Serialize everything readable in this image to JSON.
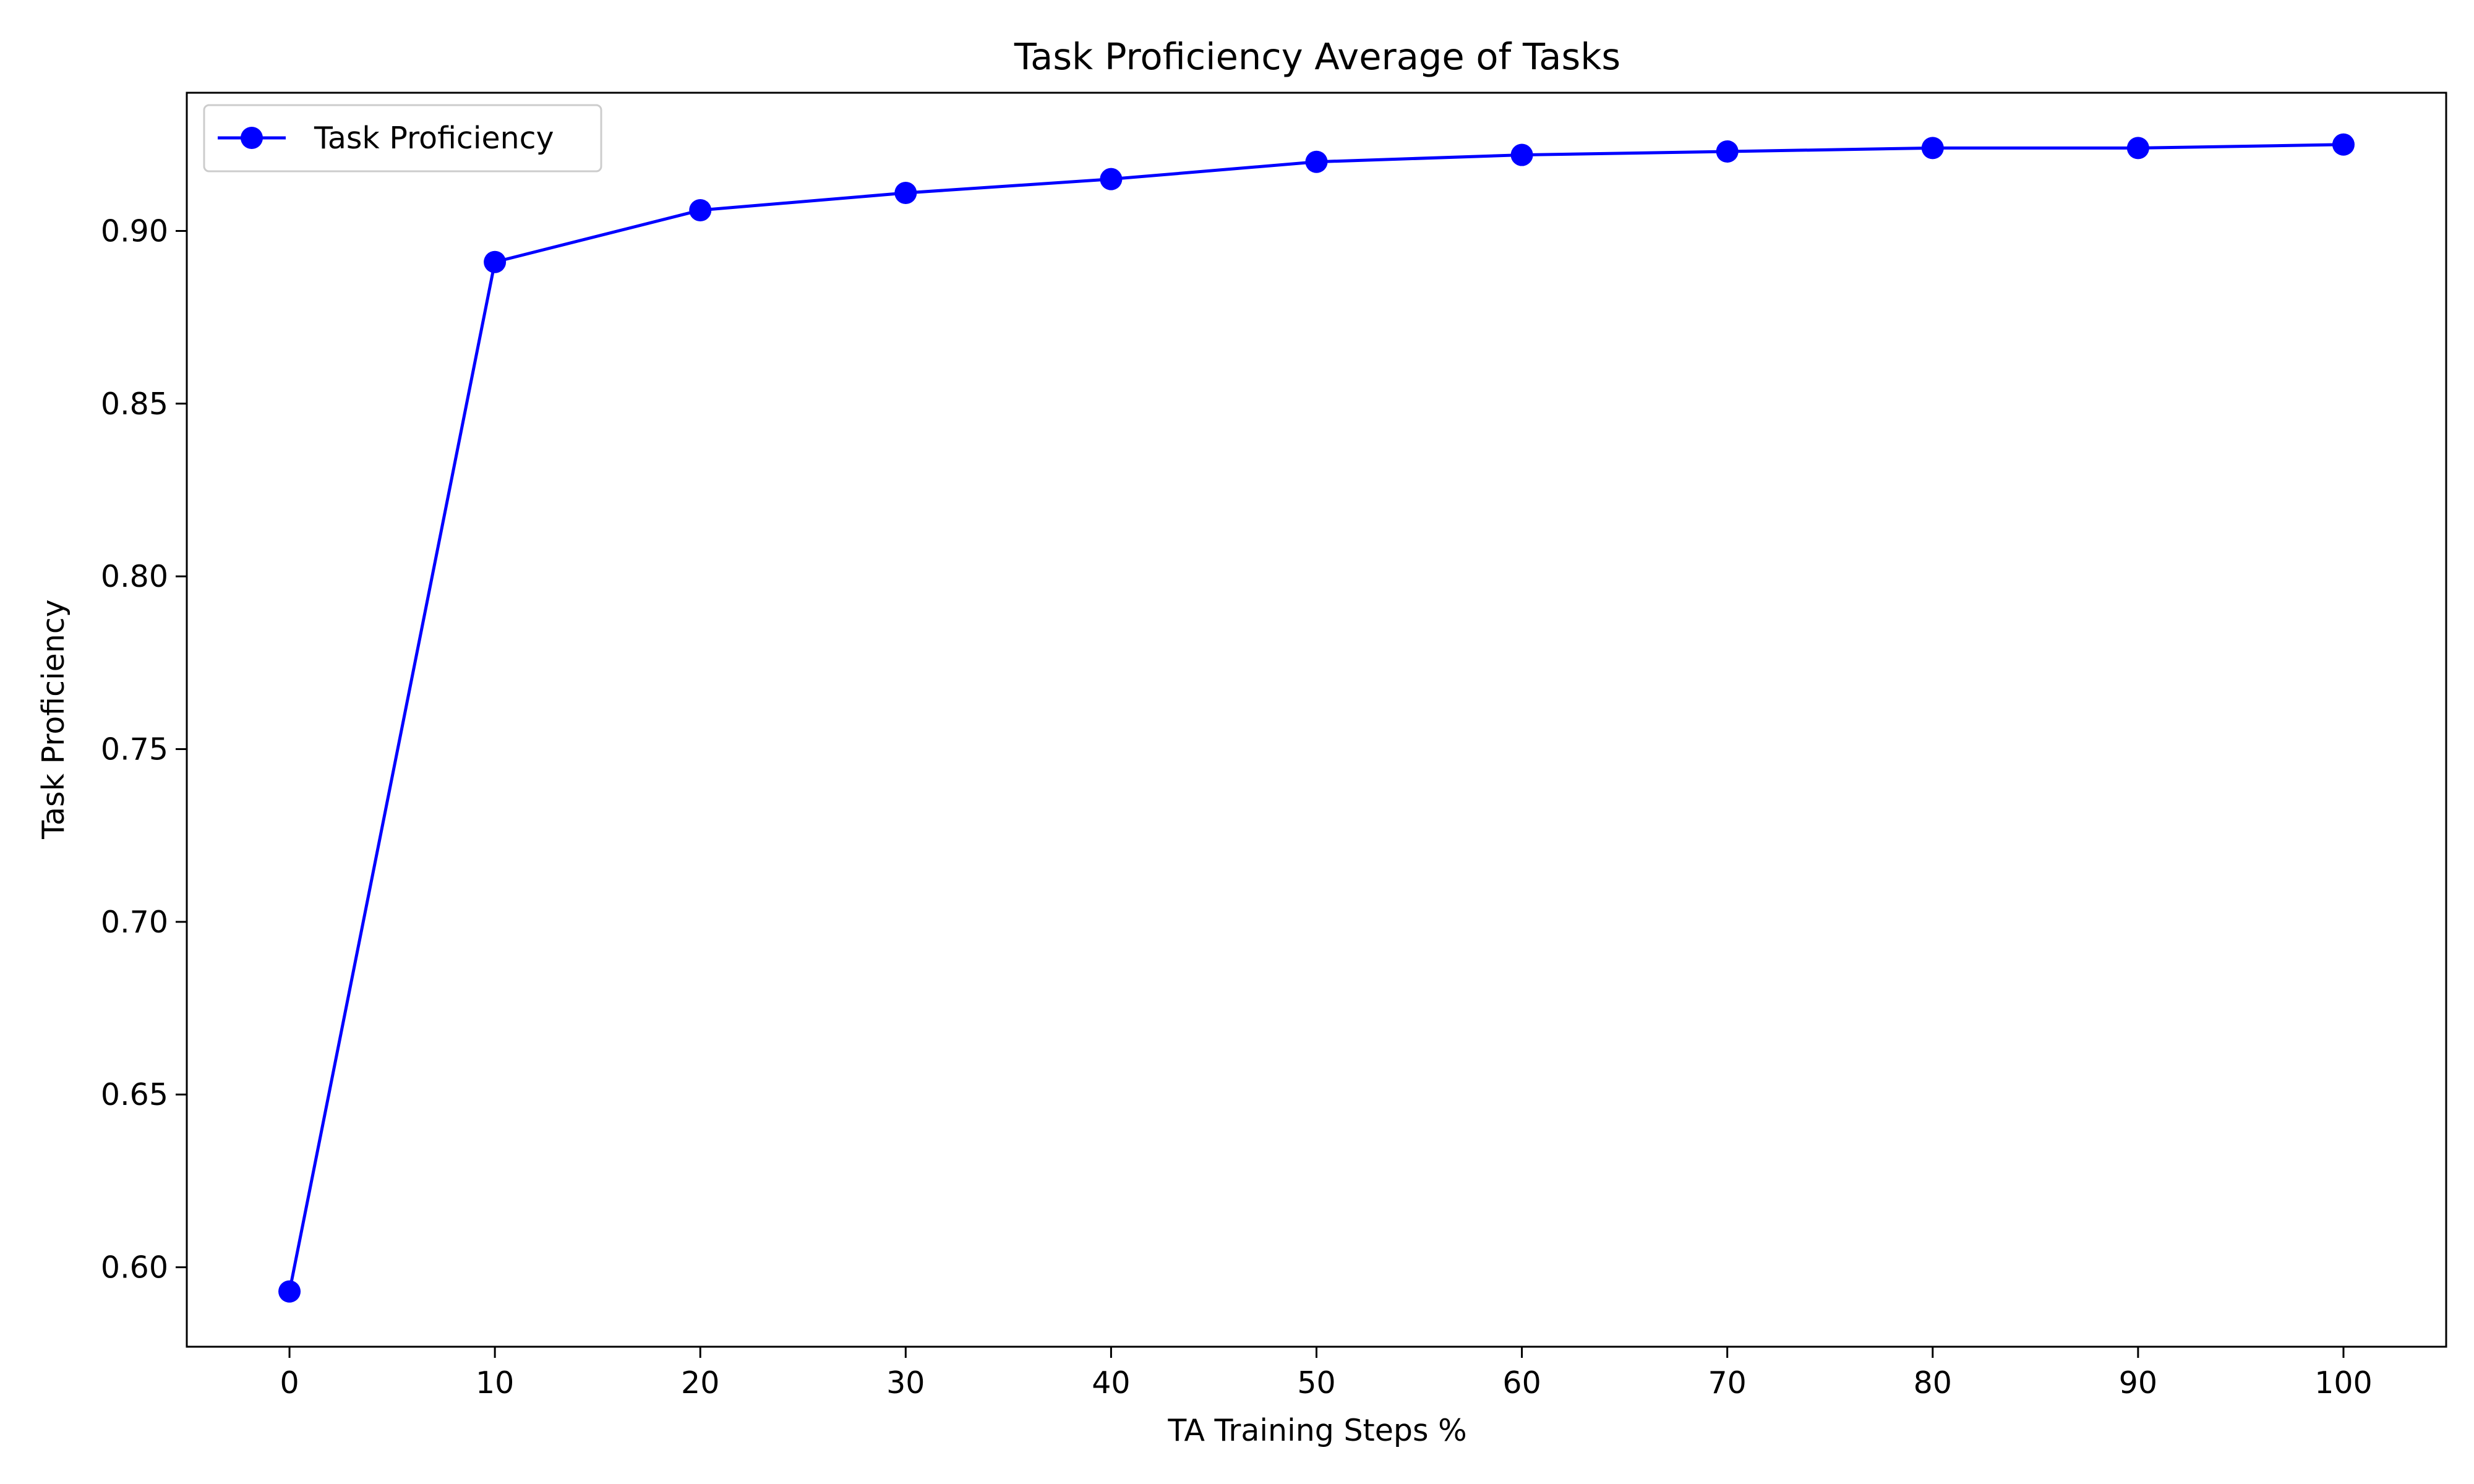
{
  "chart_data": {
    "type": "line",
    "title": "Task Proficiency Average of Tasks",
    "xlabel": "TA Training Steps %",
    "ylabel": "Task Proficiency",
    "x": [
      0,
      10,
      20,
      30,
      40,
      50,
      60,
      70,
      80,
      90,
      100
    ],
    "xticks": [
      "0",
      "10",
      "20",
      "30",
      "40",
      "50",
      "60",
      "70",
      "80",
      "90",
      "100"
    ],
    "yticks": [
      "0.60",
      "0.65",
      "0.70",
      "0.75",
      "0.80",
      "0.85",
      "0.90"
    ],
    "ytick_values": [
      0.6,
      0.65,
      0.7,
      0.75,
      0.8,
      0.85,
      0.9
    ],
    "xlim": [
      -5,
      105
    ],
    "ylim": [
      0.577,
      0.94
    ],
    "grid": false,
    "legend_position": "top-left",
    "series": [
      {
        "name": "Task Proficiency",
        "color": "#0000ff",
        "marker": "circle",
        "values": [
          0.593,
          0.891,
          0.906,
          0.911,
          0.915,
          0.92,
          0.922,
          0.923,
          0.924,
          0.924,
          0.925
        ]
      }
    ]
  }
}
